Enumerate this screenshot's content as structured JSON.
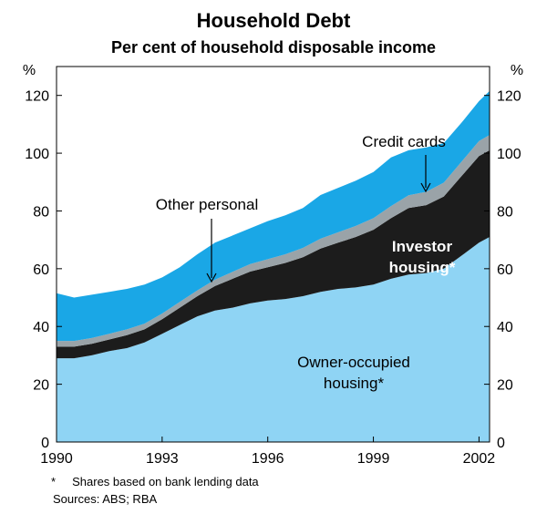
{
  "chart_data": {
    "type": "area",
    "title": "Household Debt",
    "subtitle": "Per cent of household disposable income",
    "y_unit_left": "%",
    "y_unit_right": "%",
    "ylim": [
      0,
      130
    ],
    "yticks": [
      0,
      20,
      40,
      60,
      80,
      100,
      120
    ],
    "xlim": [
      1990,
      2002.3
    ],
    "xticks": [
      1990,
      1993,
      1996,
      1999,
      2002
    ],
    "stacked": true,
    "x": [
      1990.0,
      1990.5,
      1991.0,
      1991.5,
      1992.0,
      1992.5,
      1993.0,
      1993.5,
      1994.0,
      1994.5,
      1995.0,
      1995.5,
      1996.0,
      1996.5,
      1997.0,
      1997.5,
      1998.0,
      1998.5,
      1999.0,
      1999.5,
      2000.0,
      2000.5,
      2001.0,
      2001.5,
      2002.0,
      2002.3
    ],
    "series": [
      {
        "name": "Owner-occupied housing",
        "color": "#8fd4f4",
        "values": [
          29,
          29,
          30,
          31.5,
          32.5,
          34.5,
          37.5,
          40.5,
          43.5,
          45.5,
          46.5,
          48,
          49,
          49.5,
          50.5,
          52,
          53,
          53.5,
          54.5,
          56.5,
          58,
          58.5,
          60,
          64.5,
          69,
          71
        ]
      },
      {
        "name": "Investor housing",
        "color": "#1c1c1c",
        "values": [
          4,
          4,
          4,
          4,
          4.5,
          4.5,
          5,
          6,
          7,
          8.5,
          10,
          11,
          11.5,
          12.5,
          13.5,
          15,
          16,
          17.5,
          19,
          21,
          23,
          23.5,
          25,
          27.5,
          30,
          30
        ]
      },
      {
        "name": "Credit cards",
        "color": "#9aa3a8",
        "values": [
          2,
          2,
          2,
          2,
          2,
          2,
          2,
          2,
          2,
          2.2,
          2.4,
          2.6,
          2.8,
          3,
          3.2,
          3.4,
          3.6,
          3.8,
          4,
          4.2,
          4.4,
          4.6,
          4.8,
          5,
          5.2,
          5.3
        ]
      },
      {
        "name": "Other personal",
        "color": "#1aa7e6",
        "values": [
          16.5,
          15,
          15,
          14.5,
          14,
          13.5,
          12.5,
          12,
          12.5,
          12.8,
          12.6,
          12.4,
          13.2,
          13.5,
          13.8,
          15.1,
          15.4,
          15.7,
          16,
          16.8,
          15.6,
          15.4,
          13.7,
          13.5,
          13.8,
          15.2
        ]
      }
    ],
    "annotations": {
      "credit_cards": "Credit cards",
      "other_personal": "Other personal",
      "investor_line1": "Investor",
      "investor_line2": "housing*",
      "owner_line1": "Owner-occupied",
      "owner_line2": "housing*"
    },
    "footnote": "*     Shares based on bank lending data",
    "sources": "Sources: ABS; RBA"
  }
}
